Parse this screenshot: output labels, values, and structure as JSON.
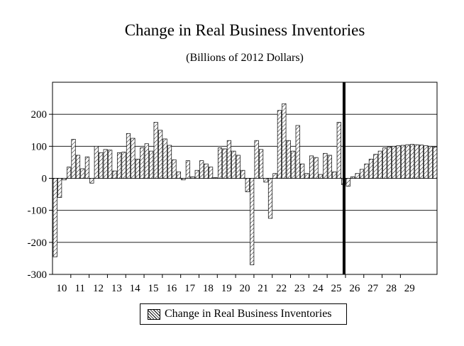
{
  "chart_data": {
    "type": "bar",
    "title": "Change in Real Business Inventories",
    "subtitle": "(Billions of 2012 Dollars)",
    "xlabel": "",
    "ylabel": "",
    "ylim": [
      -300,
      300
    ],
    "yticks": [
      200,
      100,
      0,
      -100,
      -200,
      -300
    ],
    "ytick_labels": [
      "200",
      "100",
      "0",
      "-100",
      "-200",
      "-300"
    ],
    "year_labels": [
      "10",
      "11",
      "12",
      "13",
      "14",
      "15",
      "16",
      "17",
      "18",
      "19",
      "20",
      "21",
      "22",
      "23",
      "24",
      "25",
      "26",
      "27",
      "28",
      "29"
    ],
    "grid": true,
    "forecast_divider_after_quarter": 64,
    "series": [
      {
        "name": "Change in Real Business Inventories",
        "values": [
          -245,
          -60,
          -5,
          35,
          122,
          72,
          30,
          67,
          -15,
          100,
          80,
          90,
          88,
          23,
          80,
          82,
          140,
          125,
          60,
          95,
          108,
          85,
          175,
          150,
          123,
          103,
          58,
          20,
          -5,
          55,
          5,
          25,
          55,
          45,
          35,
          2,
          95,
          92,
          118,
          85,
          72,
          25,
          -42,
          -270,
          118,
          90,
          -12,
          -125,
          15,
          212,
          233,
          118,
          85,
          165,
          45,
          15,
          70,
          65,
          12,
          78,
          72,
          20,
          175,
          -20,
          -25,
          5,
          15,
          28,
          45,
          60,
          75,
          85,
          95,
          98,
          100,
          102,
          103,
          105,
          106,
          105,
          104,
          102,
          100,
          98
        ]
      }
    ],
    "legend": {
      "label": "Change in Real Business Inventories",
      "position": "bottom-center"
    }
  }
}
